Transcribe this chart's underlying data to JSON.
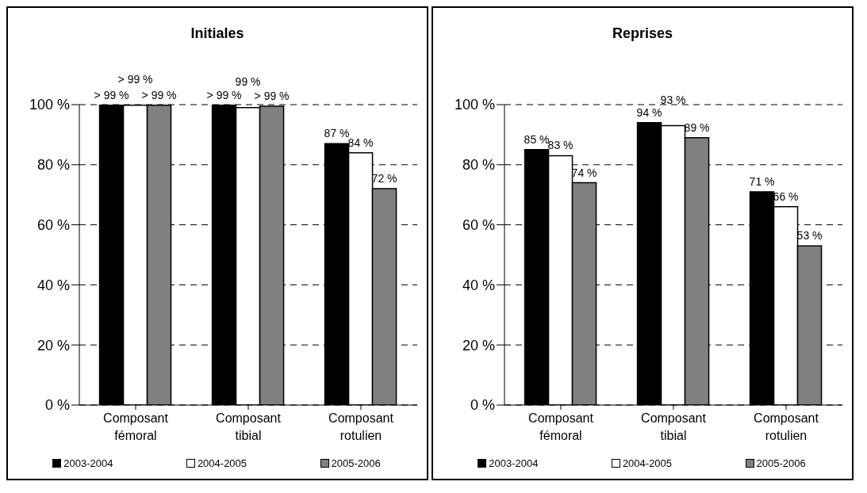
{
  "chart_data": [
    {
      "type": "bar",
      "title": "Initiales",
      "categories": [
        "Composant fémoral",
        "Composant tibial",
        "Composant rotulien"
      ],
      "series": [
        {
          "name": "2003-2004",
          "color": "#000000",
          "values": [
            99.8,
            99.8,
            87
          ],
          "value_labels": [
            "> 99 %",
            "> 99 %",
            "87 %"
          ]
        },
        {
          "name": "2004-2005",
          "color": "#ffffff",
          "values": [
            99.8,
            99,
            84
          ],
          "value_labels": [
            "> 99 %",
            "99 %",
            "84 %"
          ]
        },
        {
          "name": "2005-2006",
          "color": "#808080",
          "values": [
            99.8,
            99.5,
            72
          ],
          "value_labels": [
            "> 99 %",
            "> 99 %",
            "72 %"
          ]
        }
      ],
      "ylim": [
        0,
        100
      ],
      "yticks": [
        {
          "value": 0,
          "label": "0 %"
        },
        {
          "value": 20,
          "label": "20 %"
        },
        {
          "value": 40,
          "label": "40 %"
        },
        {
          "value": 60,
          "label": "60 %"
        },
        {
          "value": 80,
          "label": "80 %"
        },
        {
          "value": 100,
          "label": "100 %"
        }
      ],
      "grid": "y",
      "legend": "bottom"
    },
    {
      "type": "bar",
      "title": "Reprises",
      "categories": [
        "Composant fémoral",
        "Composant tibial",
        "Composant rotulien"
      ],
      "series": [
        {
          "name": "2003-2004",
          "color": "#000000",
          "values": [
            85,
            94,
            71
          ],
          "value_labels": [
            "85 %",
            "94 %",
            "71 %"
          ]
        },
        {
          "name": "2004-2005",
          "color": "#ffffff",
          "values": [
            83,
            93,
            66
          ],
          "value_labels": [
            "83 %",
            "93 %",
            "66 %"
          ]
        },
        {
          "name": "2005-2006",
          "color": "#808080",
          "values": [
            74,
            89,
            53
          ],
          "value_labels": [
            "74 %",
            "89 %",
            "53 %"
          ]
        }
      ],
      "ylim": [
        0,
        100
      ],
      "yticks": [
        {
          "value": 0,
          "label": "0 %"
        },
        {
          "value": 20,
          "label": "20 %"
        },
        {
          "value": 40,
          "label": "40 %"
        },
        {
          "value": 60,
          "label": "60 %"
        },
        {
          "value": 80,
          "label": "80 %"
        },
        {
          "value": 100,
          "label": "100 %"
        }
      ],
      "grid": "y",
      "legend": "bottom"
    }
  ]
}
